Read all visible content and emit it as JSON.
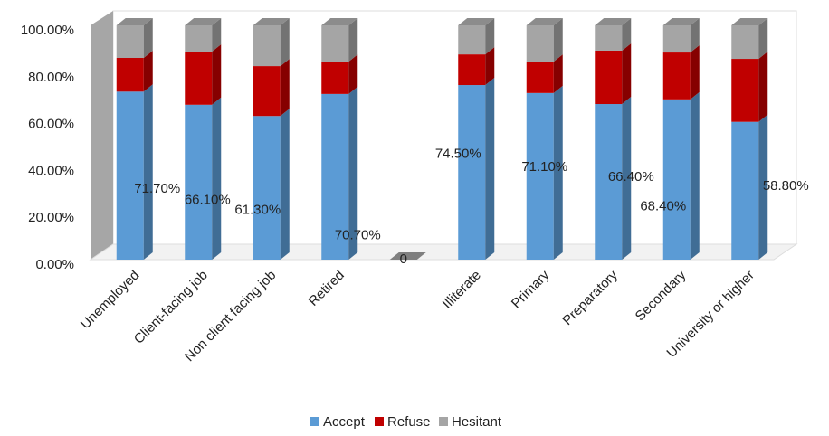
{
  "chart_data": {
    "type": "bar3d_stacked",
    "categories": [
      "Unemployed",
      "Client-facing job",
      "Non client facing job",
      "Retired",
      null,
      "Illiterate",
      "Primary",
      "Preparatory",
      "Secondary",
      "University or higher"
    ],
    "series": [
      {
        "name": "Accept",
        "color": "#5b9bd5",
        "values": [
          71.7,
          66.1,
          61.3,
          70.7,
          0,
          74.5,
          71.1,
          66.4,
          68.4,
          58.8
        ],
        "value_labels": [
          "71.70%",
          "66.10%",
          "61.30%",
          "70.70%",
          "0",
          "74.50%",
          "71.10%",
          "66.40%",
          "68.40%",
          "58.80%"
        ]
      },
      {
        "name": "Refuse",
        "color": "#c00000",
        "values": [
          14.4,
          22.7,
          21.3,
          13.8,
          null,
          13.1,
          13.4,
          22.8,
          20.0,
          26.9
        ]
      },
      {
        "name": "Hesitant",
        "color": "#a5a5a5",
        "values": [
          13.9,
          11.2,
          17.4,
          15.5,
          null,
          12.4,
          15.5,
          10.8,
          11.6,
          14.3
        ]
      }
    ],
    "ylim": [
      0,
      100
    ],
    "yticks": [
      {
        "value": 0,
        "label": "0.00%"
      },
      {
        "value": 20,
        "label": "20.00%"
      },
      {
        "value": 40,
        "label": "40.00%"
      },
      {
        "value": 60,
        "label": "60.00%"
      },
      {
        "value": 80,
        "label": "80.00%"
      },
      {
        "value": 100,
        "label": "100.00%"
      }
    ],
    "legend": "bottom",
    "grid": false
  }
}
